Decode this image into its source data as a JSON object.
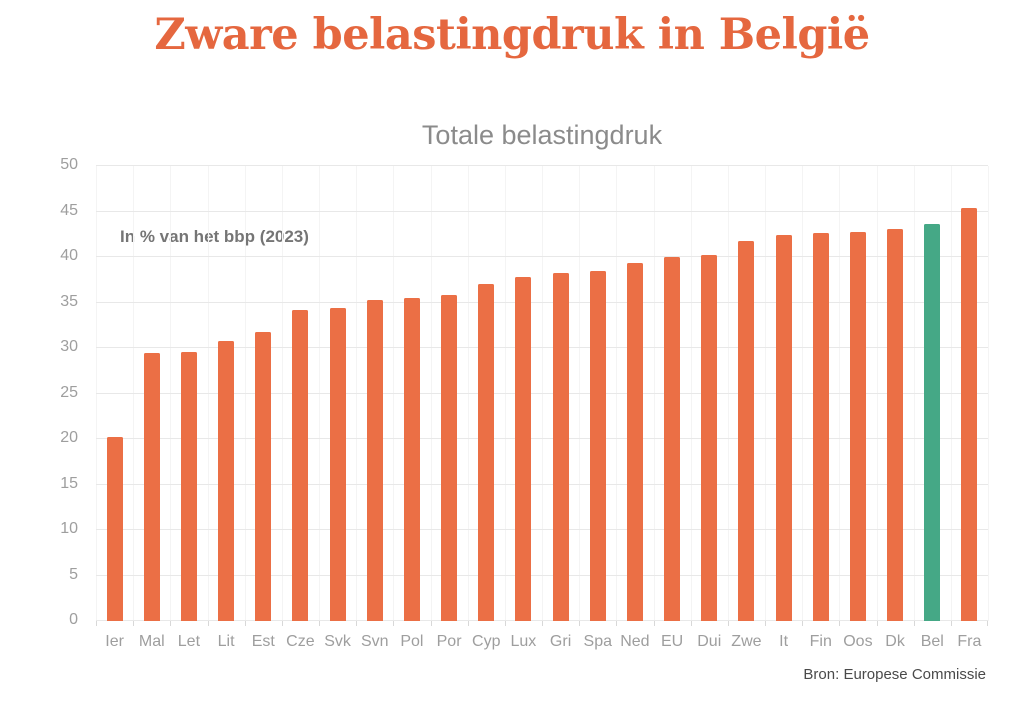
{
  "page": {
    "title": "Zware belastingdruk in België",
    "source": "Bron: Europese Commissie"
  },
  "colors": {
    "title": "#E5673F",
    "subtitle": "#8B8B8B",
    "annotation": "#757575",
    "axis_labels": "#9E9E9E",
    "source": "#4A4A4A",
    "gridline": "#E8E8E8",
    "bar": "#EB6F45",
    "highlight": "#45A886"
  },
  "chart_data": {
    "type": "bar",
    "title": "Totale belastingdruk",
    "annotation": "In % van het bbp (2023)",
    "source": "Bron: Europese Commissie",
    "categories": [
      "Ier",
      "Mal",
      "Let",
      "Lit",
      "Est",
      "Cze",
      "Svk",
      "Svn",
      "Pol",
      "Por",
      "Cyp",
      "Lux",
      "Gri",
      "Spa",
      "Ned",
      "EU",
      "Dui",
      "Zwe",
      "It",
      "Fin",
      "Oos",
      "Dk",
      "Bel",
      "Fra"
    ],
    "values": [
      20.2,
      29.4,
      29.6,
      30.8,
      31.8,
      34.2,
      34.4,
      35.3,
      35.5,
      35.8,
      37.0,
      37.8,
      38.2,
      38.5,
      39.3,
      40.0,
      40.2,
      41.8,
      42.4,
      42.6,
      42.8,
      43.1,
      43.6,
      45.4
    ],
    "highlight_category": "Bel",
    "highlight_meaning": "België",
    "xlabel": "",
    "ylabel": "",
    "ylim": [
      0,
      50
    ],
    "yticks": [
      0,
      5,
      10,
      15,
      20,
      25,
      30,
      35,
      40,
      45,
      50
    ],
    "grid": true,
    "legend": false,
    "bar_color": "#EB6F45",
    "highlight_color": "#45A886"
  }
}
